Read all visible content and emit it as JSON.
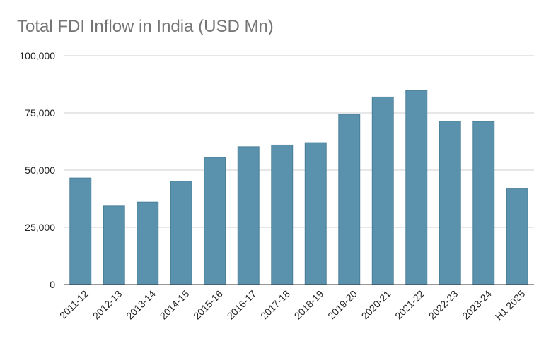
{
  "chart_data": {
    "type": "bar",
    "title": "Total FDI Inflow in India (USD Mn)",
    "xlabel": "",
    "ylabel": "",
    "categories": [
      "2011-12",
      "2012-13",
      "2013-14",
      "2014-15",
      "2015-16",
      "2016-17",
      "2017-18",
      "2018-19",
      "2019-20",
      "2020-21",
      "2021-22",
      "2022-23",
      "2023-24",
      "H1 2025"
    ],
    "values": [
      46556,
      34298,
      36046,
      45148,
      55559,
      60220,
      60974,
      62001,
      74391,
      81973,
      84835,
      71355,
      71280,
      42100
    ],
    "ylim": [
      0,
      100000
    ],
    "yticks": [
      0,
      25000,
      50000,
      75000,
      100000
    ],
    "ytick_labels": [
      "0",
      "25,000",
      "50,000",
      "75,000",
      "100,000"
    ],
    "grid": true,
    "bar_color": "#5a91ad"
  }
}
